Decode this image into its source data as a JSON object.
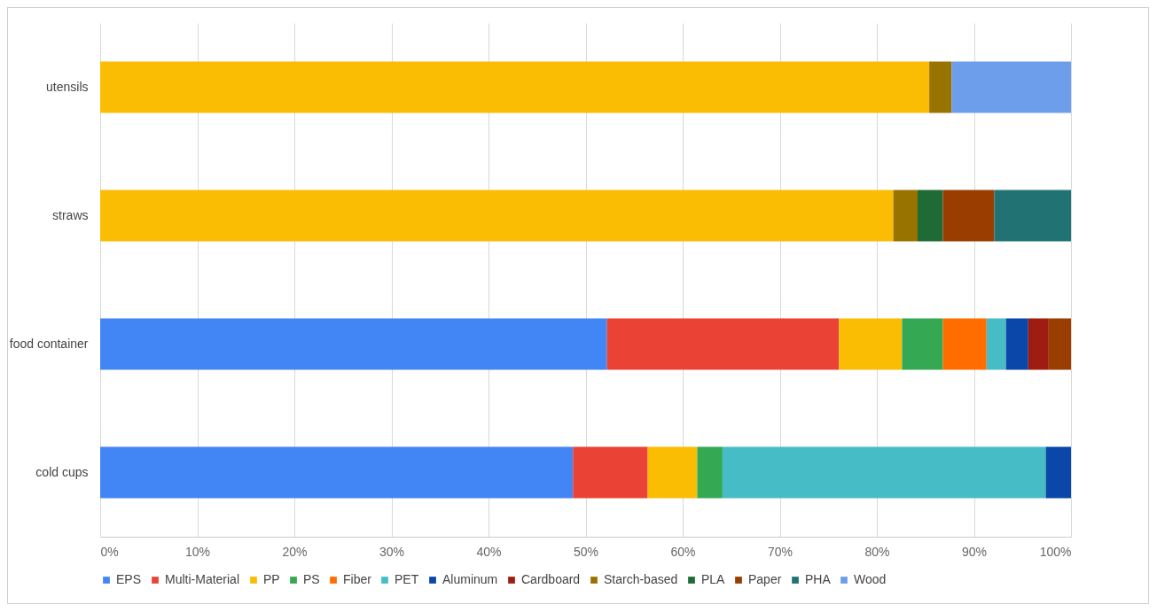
{
  "chart_data": {
    "type": "bar",
    "orientation": "horizontal",
    "stacked": true,
    "categories": [
      "utensils",
      "straws",
      "food container",
      "cold cups"
    ],
    "series": [
      {
        "name": "EPS",
        "color": "#4285f4",
        "values": [
          null,
          null,
          52.2,
          48.7
        ]
      },
      {
        "name": "Multi-Material",
        "color": "#ea4335",
        "values": [
          null,
          null,
          23.9,
          7.7
        ]
      },
      {
        "name": "PP",
        "color": "#fbbc04",
        "values": [
          85.4,
          81.7,
          6.5,
          5.1
        ]
      },
      {
        "name": "PS",
        "color": "#34a853",
        "values": [
          null,
          null,
          4.2,
          2.6
        ]
      },
      {
        "name": "Fiber",
        "color": "#ff6d01",
        "values": [
          null,
          null,
          4.5,
          null
        ]
      },
      {
        "name": "PET",
        "color": "#46bdc6",
        "values": [
          null,
          null,
          2.0,
          33.3
        ]
      },
      {
        "name": "Aluminum",
        "color": "#0b47a8",
        "values": [
          null,
          null,
          2.3,
          2.6
        ]
      },
      {
        "name": "Cardboard",
        "color": "#9e1c10",
        "values": [
          null,
          null,
          2.1,
          null
        ]
      },
      {
        "name": "Starch-based",
        "color": "#997300",
        "values": [
          2.3,
          2.5,
          null,
          null
        ]
      },
      {
        "name": "PLA",
        "color": "#1e6b36",
        "values": [
          null,
          2.6,
          null,
          null
        ]
      },
      {
        "name": "Paper",
        "color": "#993d00",
        "values": [
          null,
          5.3,
          2.3,
          null
        ]
      },
      {
        "name": "PHA",
        "color": "#217373",
        "values": [
          null,
          7.9,
          null,
          null
        ]
      },
      {
        "name": "Wood",
        "color": "#6d9eeb",
        "values": [
          12.3,
          null,
          null,
          null
        ]
      }
    ],
    "xlim": [
      0,
      100
    ],
    "xticks": [
      {
        "value": 0,
        "label": "0%"
      },
      {
        "value": 10,
        "label": "10%"
      },
      {
        "value": 20,
        "label": "20%"
      },
      {
        "value": 30,
        "label": "30%"
      },
      {
        "value": 40,
        "label": "40%"
      },
      {
        "value": 50,
        "label": "50%"
      },
      {
        "value": 60,
        "label": "60%"
      },
      {
        "value": 70,
        "label": "70%"
      },
      {
        "value": 80,
        "label": "80%"
      },
      {
        "value": 90,
        "label": "90%"
      },
      {
        "value": 100,
        "label": "100%"
      }
    ],
    "grid": "x",
    "legend": "bottom"
  }
}
